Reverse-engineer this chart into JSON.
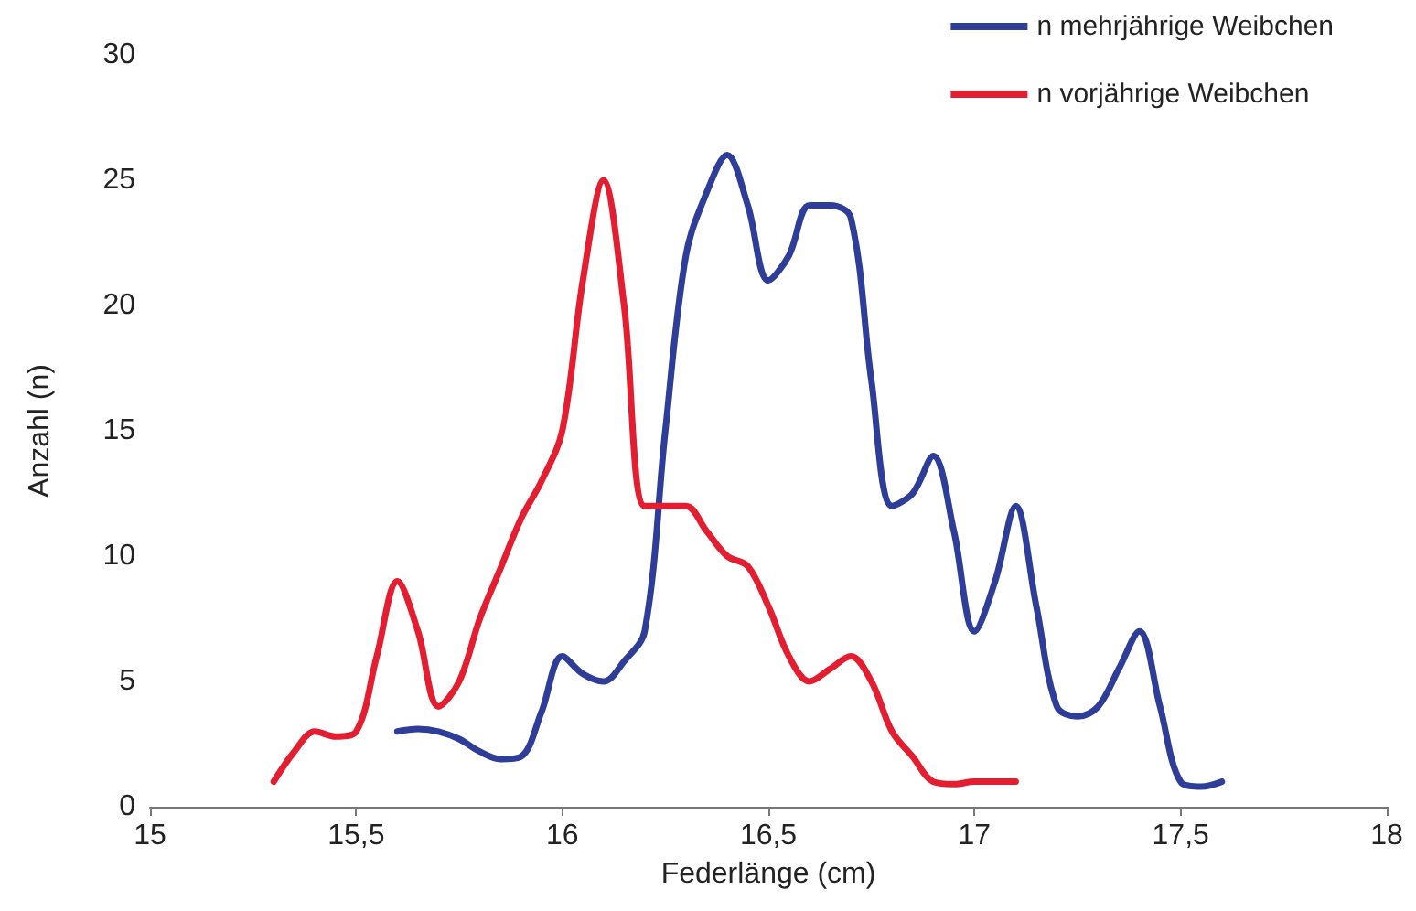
{
  "chart_data": {
    "type": "line",
    "xlabel": "Federlänge (cm)",
    "ylabel": "Anzahl (n)",
    "xlim": [
      15,
      18
    ],
    "xticks": [
      15,
      {
        "value": 15.5,
        "label": "15,5"
      },
      16,
      {
        "value": 16.5,
        "label": "16,5"
      },
      17,
      {
        "value": 17.5,
        "label": "17,5"
      },
      18
    ],
    "ylim": [
      0,
      30
    ],
    "yticks": [
      0,
      5,
      10,
      15,
      20,
      25,
      30
    ],
    "grid": false,
    "legend": "top right",
    "marker": "none",
    "line_style": "solid",
    "series": [
      {
        "name": "n mehrjährige Weibchen",
        "color": "#2e3d98",
        "x": [
          15.6,
          15.65,
          15.7,
          15.75,
          15.8,
          15.85,
          15.9,
          15.95,
          16.0,
          16.05,
          16.1,
          16.15,
          16.2,
          16.25,
          16.3,
          16.35,
          16.4,
          16.45,
          16.5,
          16.55,
          16.6,
          16.65,
          16.7,
          16.75,
          16.8,
          16.85,
          16.9,
          16.95,
          17.0,
          17.05,
          17.1,
          17.15,
          17.2,
          17.25,
          17.3,
          17.35,
          17.4,
          17.45,
          17.5,
          17.55,
          17.6
        ],
        "values": [
          3,
          3.1,
          3,
          2.7,
          2.2,
          1.9,
          2,
          3.8,
          6,
          5.3,
          5,
          5.8,
          7,
          15,
          22,
          24.5,
          26,
          24,
          21,
          22,
          24,
          24,
          23.5,
          17,
          12,
          12.5,
          14,
          11,
          7,
          9,
          12,
          8,
          4,
          3.6,
          4,
          5.5,
          7,
          4,
          1,
          0.8,
          1
        ]
      },
      {
        "name": "n vorjährige Weibchen",
        "color": "#e31e31",
        "x": [
          15.3,
          15.35,
          15.4,
          15.45,
          15.5,
          15.55,
          15.6,
          15.65,
          15.7,
          15.75,
          15.8,
          15.85,
          15.9,
          15.95,
          16.0,
          16.05,
          16.1,
          16.15,
          16.2,
          16.25,
          16.3,
          16.35,
          16.4,
          16.45,
          16.5,
          16.55,
          16.6,
          16.65,
          16.7,
          16.75,
          16.8,
          16.85,
          16.9,
          16.95,
          17.0,
          17.05,
          17.1
        ],
        "values": [
          1,
          2.2,
          3,
          2.8,
          3,
          6,
          9,
          7,
          4,
          5,
          7.5,
          9.5,
          11.5,
          13,
          15,
          21,
          25,
          20,
          12,
          12,
          12,
          11,
          10,
          9.6,
          8,
          6,
          5,
          5.5,
          6,
          5,
          3,
          2,
          1,
          0.9,
          1,
          1,
          1
        ]
      }
    ]
  }
}
